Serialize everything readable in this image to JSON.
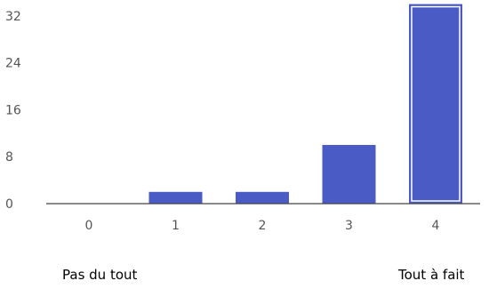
{
  "chart_data": {
    "type": "bar",
    "categories": [
      "0",
      "1",
      "2",
      "3",
      "4"
    ],
    "values": [
      0,
      2,
      2,
      10,
      34
    ],
    "yticks": [
      "0",
      "8",
      "16",
      "24",
      "32"
    ],
    "ylim": [
      0,
      34
    ],
    "grid": false,
    "bar_color": "#4a5bc6",
    "title": "",
    "xlabel": "",
    "ylabel": ""
  },
  "scale_labels": {
    "left": "Pas du tout",
    "right": "Tout à fait"
  }
}
